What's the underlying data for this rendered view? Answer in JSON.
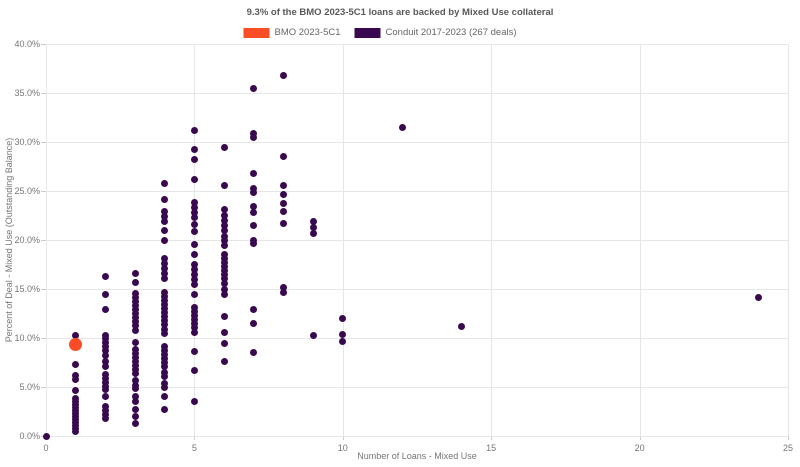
{
  "title": "9.3% of the BMO 2023-5C1 loans are backed by Mixed Use collateral",
  "legend": {
    "items": [
      {
        "label": "BMO 2023-5C1",
        "color": "#f94d26"
      },
      {
        "label": "Conduit 2017-2023 (267 deals)",
        "color": "#38094e"
      }
    ]
  },
  "colors": {
    "bmo_orange": "#f94d26",
    "conduit_purple": "#38094e",
    "gridline": "#e6e6e6",
    "tick_text": "#757575",
    "title_text": "#595959"
  },
  "chart_data": {
    "type": "scatter",
    "title": "9.3% of the BMO 2023-5C1 loans are backed by Mixed Use collateral",
    "xlabel": "Number of Loans - Mixed Use",
    "ylabel": "Percent of Deal - Mixed Use (Outstanding Balance)",
    "xlim": [
      0,
      25
    ],
    "ylim": [
      0,
      40
    ],
    "x_ticks": [
      0,
      5,
      10,
      15,
      20,
      25
    ],
    "x_tick_labels": [
      "0",
      "5",
      "10",
      "15",
      "20",
      "25"
    ],
    "y_ticks": [
      0,
      5,
      10,
      15,
      20,
      25,
      30,
      35,
      40
    ],
    "y_tick_labels": [
      "0.0%",
      "5.0%",
      "10.0%",
      "15.0%",
      "20.0%",
      "25.0%",
      "30.0%",
      "35.0%",
      "40.0%"
    ],
    "grid": true,
    "legend_position": "top-center",
    "series": [
      {
        "name": "BMO 2023-5C1",
        "color": "#f94d26",
        "marker_diameter_px": 13,
        "points": [
          [
            1,
            9.3
          ]
        ]
      },
      {
        "name": "Conduit 2017-2023 (267 deals)",
        "color": "#38094e",
        "marker_diameter_px": 7,
        "points": [
          [
            0,
            0.0
          ],
          [
            1,
            10.3
          ],
          [
            1,
            7.3
          ],
          [
            1,
            6.2
          ],
          [
            1,
            5.8
          ],
          [
            1,
            4.6
          ],
          [
            1,
            3.8
          ],
          [
            1,
            3.5
          ],
          [
            1,
            3.2
          ],
          [
            1,
            2.9
          ],
          [
            1,
            2.6
          ],
          [
            1,
            2.3
          ],
          [
            1,
            2.0
          ],
          [
            1,
            1.7
          ],
          [
            1,
            1.4
          ],
          [
            1,
            1.1
          ],
          [
            1,
            0.8
          ],
          [
            1,
            0.5
          ],
          [
            2,
            16.3
          ],
          [
            2,
            14.4
          ],
          [
            2,
            12.9
          ],
          [
            2,
            10.3
          ],
          [
            2,
            9.9
          ],
          [
            2,
            9.5
          ],
          [
            2,
            9.1
          ],
          [
            2,
            8.7
          ],
          [
            2,
            8.2
          ],
          [
            2,
            7.6
          ],
          [
            2,
            7.1
          ],
          [
            2,
            6.3
          ],
          [
            2,
            5.9
          ],
          [
            2,
            5.5
          ],
          [
            2,
            5.1
          ],
          [
            2,
            4.7
          ],
          [
            2,
            4.0
          ],
          [
            2,
            3.0
          ],
          [
            2,
            2.6
          ],
          [
            2,
            2.2
          ],
          [
            2,
            1.8
          ],
          [
            3,
            16.6
          ],
          [
            3,
            15.7
          ],
          [
            3,
            14.5
          ],
          [
            3,
            14.1
          ],
          [
            3,
            13.7
          ],
          [
            3,
            13.3
          ],
          [
            3,
            12.9
          ],
          [
            3,
            12.5
          ],
          [
            3,
            12.1
          ],
          [
            3,
            11.7
          ],
          [
            3,
            11.3
          ],
          [
            3,
            10.8
          ],
          [
            3,
            9.5
          ],
          [
            3,
            8.8
          ],
          [
            3,
            8.4
          ],
          [
            3,
            8.0
          ],
          [
            3,
            7.6
          ],
          [
            3,
            7.2
          ],
          [
            3,
            6.8
          ],
          [
            3,
            6.4
          ],
          [
            3,
            5.7
          ],
          [
            3,
            5.2
          ],
          [
            3,
            4.8
          ],
          [
            3,
            4.0
          ],
          [
            3,
            3.5
          ],
          [
            3,
            2.7
          ],
          [
            3,
            2.0
          ],
          [
            3,
            1.3
          ],
          [
            4,
            25.8
          ],
          [
            4,
            24.1
          ],
          [
            4,
            22.9
          ],
          [
            4,
            22.4
          ],
          [
            4,
            21.9
          ],
          [
            4,
            21.0
          ],
          [
            4,
            20.0
          ],
          [
            4,
            18.1
          ],
          [
            4,
            17.6
          ],
          [
            4,
            17.1
          ],
          [
            4,
            16.6
          ],
          [
            4,
            16.1
          ],
          [
            4,
            14.6
          ],
          [
            4,
            14.2
          ],
          [
            4,
            13.8
          ],
          [
            4,
            13.4
          ],
          [
            4,
            13.0
          ],
          [
            4,
            12.6
          ],
          [
            4,
            12.2
          ],
          [
            4,
            11.8
          ],
          [
            4,
            11.4
          ],
          [
            4,
            10.9
          ],
          [
            4,
            10.5
          ],
          [
            4,
            9.1
          ],
          [
            4,
            8.7
          ],
          [
            4,
            8.3
          ],
          [
            4,
            7.9
          ],
          [
            4,
            7.5
          ],
          [
            4,
            7.1
          ],
          [
            4,
            6.5
          ],
          [
            4,
            6.1
          ],
          [
            4,
            5.4
          ],
          [
            4,
            4.9
          ],
          [
            4,
            4.0
          ],
          [
            4,
            2.7
          ],
          [
            5,
            31.2
          ],
          [
            5,
            29.2
          ],
          [
            5,
            28.2
          ],
          [
            5,
            26.2
          ],
          [
            5,
            23.8
          ],
          [
            5,
            23.3
          ],
          [
            5,
            22.8
          ],
          [
            5,
            22.3
          ],
          [
            5,
            21.6
          ],
          [
            5,
            20.9
          ],
          [
            5,
            19.5
          ],
          [
            5,
            18.5
          ],
          [
            5,
            17.5
          ],
          [
            5,
            17.0
          ],
          [
            5,
            16.5
          ],
          [
            5,
            16.0
          ],
          [
            5,
            15.5
          ],
          [
            5,
            14.4
          ],
          [
            5,
            13.1
          ],
          [
            5,
            12.7
          ],
          [
            5,
            12.3
          ],
          [
            5,
            11.9
          ],
          [
            5,
            11.5
          ],
          [
            5,
            11.1
          ],
          [
            5,
            10.6
          ],
          [
            5,
            8.6
          ],
          [
            5,
            6.7
          ],
          [
            5,
            3.5
          ],
          [
            6,
            29.4
          ],
          [
            6,
            25.6
          ],
          [
            6,
            23.1
          ],
          [
            6,
            22.5
          ],
          [
            6,
            22.0
          ],
          [
            6,
            21.5
          ],
          [
            6,
            21.0
          ],
          [
            6,
            20.4
          ],
          [
            6,
            19.9
          ],
          [
            6,
            19.4
          ],
          [
            6,
            18.5
          ],
          [
            6,
            18.1
          ],
          [
            6,
            17.7
          ],
          [
            6,
            17.3
          ],
          [
            6,
            16.9
          ],
          [
            6,
            16.5
          ],
          [
            6,
            16.1
          ],
          [
            6,
            15.6
          ],
          [
            6,
            14.9
          ],
          [
            6,
            14.4
          ],
          [
            6,
            12.2
          ],
          [
            6,
            10.6
          ],
          [
            6,
            9.4
          ],
          [
            6,
            7.6
          ],
          [
            7,
            35.5
          ],
          [
            7,
            30.9
          ],
          [
            7,
            30.5
          ],
          [
            7,
            26.8
          ],
          [
            7,
            25.3
          ],
          [
            7,
            24.8
          ],
          [
            7,
            23.4
          ],
          [
            7,
            22.8
          ],
          [
            7,
            21.5
          ],
          [
            7,
            20.0
          ],
          [
            7,
            19.6
          ],
          [
            7,
            12.9
          ],
          [
            7,
            11.5
          ],
          [
            7,
            8.5
          ],
          [
            8,
            36.8
          ],
          [
            8,
            28.5
          ],
          [
            8,
            25.6
          ],
          [
            8,
            24.6
          ],
          [
            8,
            23.7
          ],
          [
            8,
            22.9
          ],
          [
            8,
            21.7
          ],
          [
            8,
            15.2
          ],
          [
            8,
            14.6
          ],
          [
            9,
            21.9
          ],
          [
            9,
            21.3
          ],
          [
            9,
            20.7
          ],
          [
            9,
            10.3
          ],
          [
            10,
            12.0
          ],
          [
            10,
            10.4
          ],
          [
            10,
            9.6
          ],
          [
            12,
            31.5
          ],
          [
            14,
            11.2
          ],
          [
            24,
            14.1
          ]
        ]
      }
    ]
  }
}
